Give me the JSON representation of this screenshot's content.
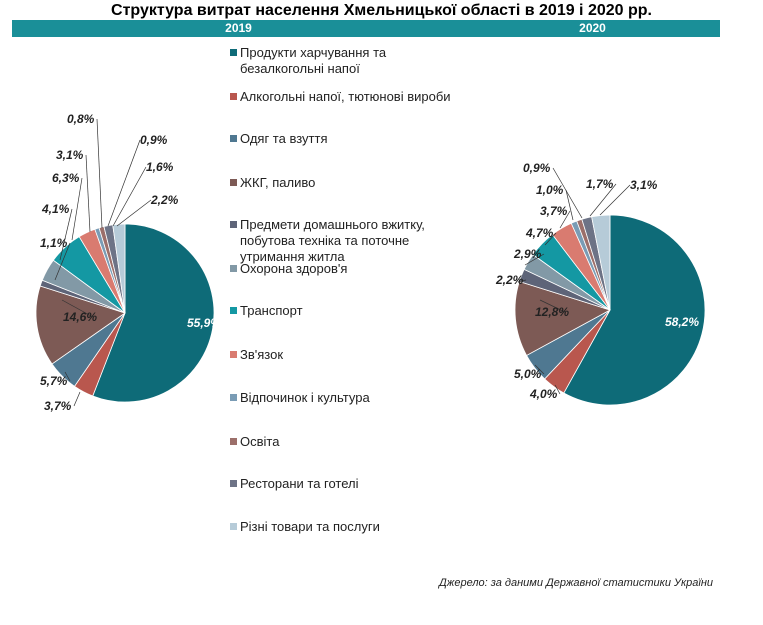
{
  "title": "Структура витрат населення Хмельницької області в 2019 і 2020 рр.",
  "source": "Джерело: за даними Державної статистики України",
  "chart_data": {
    "type": "pie",
    "categories": [
      "Продукти харчування та безалкогольні напої",
      "Алкогольні напої, тютюнові вироби",
      "Одяг та взуття",
      "ЖКГ, паливо",
      "Предмети домашнього вжитку, побутова техніка та поточне утримання житла",
      "Охорона здоров'я",
      "Транспорт",
      "Зв'язок",
      "Відпочинок і культура",
      "Освіта",
      "Ресторани та готелі",
      "Різні товари та послуги"
    ],
    "legend_lines": [
      [
        "Продукти харчування та",
        "безалкогольні напої"
      ],
      [
        "Алкогольні напої, тютюнові вироби"
      ],
      [
        "Одяг та взуття"
      ],
      [
        "ЖКГ, паливо"
      ],
      [
        "Предмети домашнього вжитку,",
        "побутова техніка та поточне",
        "утримання житла"
      ],
      [
        "Охорона здоров'я"
      ],
      [
        "Транспорт"
      ],
      [
        "Зв'язок"
      ],
      [
        "Відпочинок і культура"
      ],
      [
        "Освіта"
      ],
      [
        "Ресторани та готелі"
      ],
      [
        "Різні товари та послуги"
      ]
    ],
    "colors": [
      "#0e6b78",
      "#b9574e",
      "#4f7891",
      "#7d5a55",
      "#5e6478",
      "#8299a6",
      "#1498a3",
      "#d97b70",
      "#7a9cb5",
      "#9c6f6a",
      "#6d7386",
      "#b6cbd8"
    ],
    "legend_position": "center",
    "series": [
      {
        "name": "2019",
        "values": [
          55.9,
          3.7,
          5.7,
          14.6,
          1.1,
          4.1,
          6.3,
          3.1,
          0.8,
          0.9,
          1.6,
          2.2
        ],
        "labels": [
          "55,9%",
          "3,7%",
          "5,7%",
          "14,6%",
          "1,1%",
          "4,1%",
          "6,3%",
          "3,1%",
          "0,8%",
          "0,9%",
          "1,6%",
          "2,2%"
        ]
      },
      {
        "name": "2020",
        "values": [
          58.2,
          4.0,
          5.0,
          12.8,
          2.2,
          2.9,
          4.7,
          3.7,
          1.0,
          0.9,
          1.7,
          3.1
        ],
        "labels": [
          "58,2%",
          "4,0%",
          "5,0%",
          "12,8%",
          "2,2%",
          "2,9%",
          "4,7%",
          "3,7%",
          "1,0%",
          "0,9%",
          "1,7%",
          "3,1%"
        ]
      }
    ]
  }
}
